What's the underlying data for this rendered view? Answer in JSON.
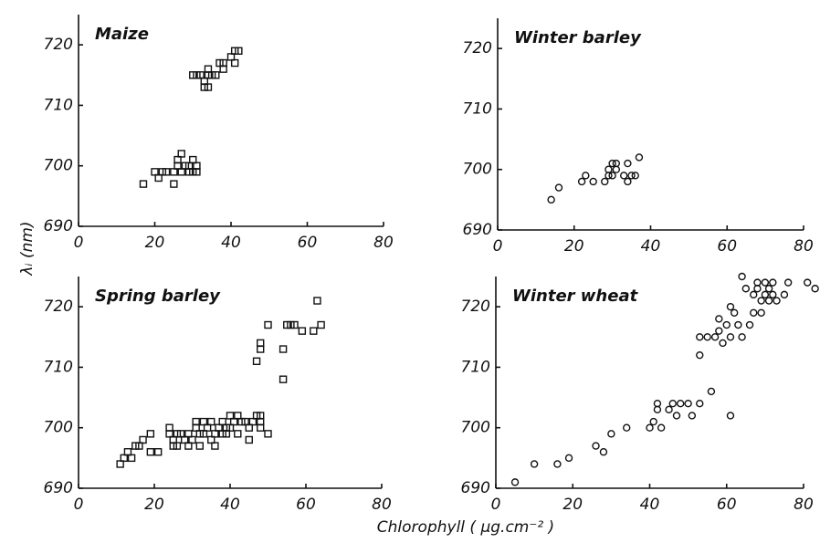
{
  "ylabel": "λᵢ (nm)",
  "xlabel": "Chlorophyll  ( µg.cm⁻² )",
  "chart_data": [
    {
      "type": "scatter",
      "title": "Maize",
      "marker": "square",
      "color": "#111111",
      "xlim": [
        0,
        80
      ],
      "ylim": [
        690,
        725
      ],
      "xticks": [
        0,
        20,
        40,
        60,
        80
      ],
      "yticks": [
        690,
        700,
        710,
        720
      ],
      "x": [
        17,
        20,
        21,
        22,
        23,
        25,
        25,
        26,
        26,
        27,
        27,
        28,
        29,
        29,
        30,
        30,
        31,
        31,
        30,
        31,
        32,
        33,
        33,
        34,
        34,
        34,
        35,
        36,
        37,
        38,
        38,
        40,
        41,
        41,
        42
      ],
      "values": [
        697,
        699,
        698,
        699,
        699,
        697,
        699,
        700,
        701,
        702,
        699,
        700,
        699,
        700,
        701,
        699,
        700,
        699,
        715,
        715,
        715,
        714,
        713,
        715,
        716,
        713,
        715,
        715,
        717,
        716,
        717,
        718,
        719,
        717,
        719
      ]
    },
    {
      "type": "scatter",
      "title": "Winter barley",
      "marker": "circle",
      "color": "#111111",
      "xlim": [
        0,
        80
      ],
      "ylim": [
        690,
        725
      ],
      "xticks": [
        0,
        20,
        40,
        60,
        80
      ],
      "yticks": [
        690,
        700,
        710,
        720
      ],
      "x": [
        14,
        16,
        22,
        23,
        25,
        28,
        29,
        29,
        30,
        31,
        31,
        30,
        34,
        34,
        35,
        36,
        37,
        33
      ],
      "values": [
        695,
        697,
        698,
        699,
        698,
        698,
        700,
        699,
        701,
        700,
        701,
        699,
        701,
        698,
        699,
        699,
        702,
        699
      ]
    },
    {
      "type": "scatter",
      "title": "Spring barley",
      "marker": "square",
      "color": "#111111",
      "xlim": [
        0,
        80
      ],
      "ylim": [
        690,
        725
      ],
      "xticks": [
        0,
        20,
        40,
        60,
        80
      ],
      "yticks": [
        690,
        700,
        710,
        720
      ],
      "x": [
        11,
        12,
        13,
        14,
        15,
        16,
        17,
        19,
        19,
        21,
        24,
        24,
        25,
        25,
        26,
        26,
        27,
        28,
        29,
        29,
        30,
        31,
        31,
        32,
        32,
        33,
        33,
        34,
        35,
        35,
        36,
        36,
        37,
        38,
        38,
        39,
        39,
        40,
        40,
        41,
        42,
        42,
        43,
        44,
        45,
        45,
        46,
        47,
        48,
        48,
        48,
        47,
        48,
        48,
        50,
        50,
        54,
        54,
        56,
        55,
        57,
        59,
        62,
        63,
        64
      ],
      "values": [
        694,
        695,
        696,
        695,
        697,
        697,
        698,
        699,
        696,
        696,
        699,
        700,
        697,
        698,
        699,
        697,
        699,
        698,
        699,
        697,
        698,
        700,
        701,
        697,
        699,
        701,
        699,
        700,
        698,
        701,
        699,
        697,
        700,
        699,
        701,
        699,
        700,
        702,
        700,
        701,
        699,
        702,
        701,
        701,
        698,
        700,
        701,
        702,
        701,
        702,
        700,
        711,
        713,
        714,
        717,
        699,
        713,
        708,
        717,
        717,
        717,
        716,
        716,
        721,
        717
      ]
    },
    {
      "type": "scatter",
      "title": "Winter wheat",
      "marker": "circle",
      "color": "#111111",
      "xlim": [
        0,
        80
      ],
      "ylim": [
        690,
        725
      ],
      "xticks": [
        0,
        20,
        40,
        60,
        80
      ],
      "yticks": [
        690,
        700,
        710,
        720
      ],
      "x": [
        5,
        10,
        16,
        19,
        26,
        28,
        30,
        34,
        40,
        41,
        42,
        42,
        43,
        45,
        46,
        47,
        48,
        50,
        51,
        53,
        53,
        53,
        55,
        56,
        57,
        58,
        58,
        59,
        60,
        61,
        61,
        61,
        62,
        63,
        64,
        64,
        65,
        66,
        67,
        67,
        68,
        68,
        69,
        69,
        70,
        70,
        71,
        71,
        72,
        72,
        73,
        75,
        76,
        81,
        83
      ],
      "values": [
        691,
        694,
        694,
        695,
        697,
        696,
        699,
        700,
        700,
        701,
        703,
        704,
        700,
        703,
        704,
        702,
        704,
        704,
        702,
        704,
        712,
        715,
        715,
        706,
        715,
        716,
        718,
        714,
        717,
        720,
        702,
        715,
        719,
        717,
        725,
        715,
        723,
        717,
        719,
        722,
        723,
        724,
        721,
        719,
        722,
        724,
        721,
        723,
        722,
        724,
        721,
        722,
        724,
        724,
        723
      ]
    }
  ]
}
